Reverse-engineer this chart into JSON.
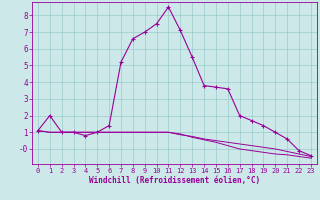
{
  "xlabel": "Windchill (Refroidissement éolien,°C)",
  "bg_color": "#cce8e8",
  "grid_color": "#99cccc",
  "line_color": "#990099",
  "x_ticks": [
    0,
    1,
    2,
    3,
    4,
    5,
    6,
    7,
    8,
    9,
    10,
    11,
    12,
    13,
    14,
    15,
    16,
    17,
    18,
    19,
    20,
    21,
    22,
    23
  ],
  "y_ticks": [
    0,
    1,
    2,
    3,
    4,
    5,
    6,
    7,
    8
  ],
  "y_tick_labels": [
    "-0",
    "1",
    "2",
    "3",
    "4",
    "5",
    "6",
    "7",
    "8"
  ],
  "ylim": [
    -0.9,
    8.8
  ],
  "xlim": [
    -0.5,
    23.5
  ],
  "line1_x": [
    0,
    1,
    2,
    3,
    4,
    5,
    6,
    7,
    8,
    9,
    10,
    11,
    12,
    13,
    14,
    15,
    16,
    17,
    18,
    19,
    20,
    21,
    22,
    23
  ],
  "line1_y": [
    1.1,
    2.0,
    1.0,
    1.0,
    0.8,
    1.0,
    1.4,
    5.2,
    6.6,
    7.0,
    7.5,
    8.5,
    7.1,
    5.5,
    3.8,
    3.7,
    3.6,
    2.0,
    1.7,
    1.4,
    1.0,
    0.6,
    -0.1,
    -0.4
  ],
  "line2_x": [
    0,
    1,
    2,
    3,
    4,
    5,
    6,
    7,
    8,
    9,
    10,
    11,
    12,
    13,
    14,
    15,
    16,
    17,
    18,
    19,
    20,
    21,
    22,
    23
  ],
  "line2_y": [
    1.1,
    1.0,
    1.0,
    1.0,
    1.0,
    1.0,
    1.0,
    1.0,
    1.0,
    1.0,
    1.0,
    1.0,
    0.85,
    0.75,
    0.6,
    0.5,
    0.4,
    0.3,
    0.2,
    0.1,
    0.0,
    -0.15,
    -0.3,
    -0.45
  ],
  "line3_x": [
    0,
    1,
    2,
    3,
    4,
    5,
    6,
    7,
    8,
    9,
    10,
    11,
    12,
    13,
    14,
    15,
    16,
    17,
    18,
    19,
    20,
    21,
    22,
    23
  ],
  "line3_y": [
    1.1,
    1.0,
    1.0,
    1.0,
    1.0,
    1.0,
    1.0,
    1.0,
    1.0,
    1.0,
    1.0,
    1.0,
    0.9,
    0.7,
    0.55,
    0.4,
    0.2,
    0.0,
    -0.1,
    -0.2,
    -0.3,
    -0.35,
    -0.45,
    -0.55
  ]
}
